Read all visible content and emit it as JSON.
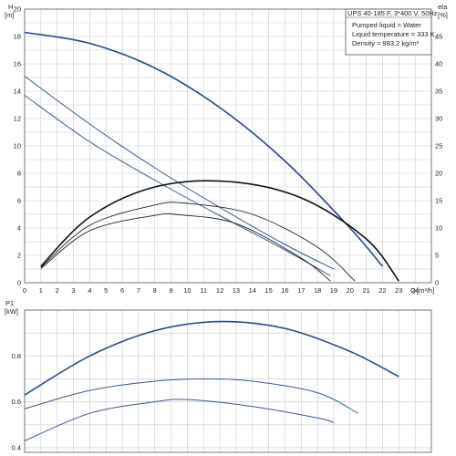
{
  "chart_data": [
    {
      "type": "line",
      "info_box": {
        "title": "UPS 40-185 F, 3*400 V, 50Hz",
        "lines": [
          "Pumped liquid = Water",
          "Liquid temperature = 333 K",
          "Density = 983.2 kg/m³"
        ]
      },
      "left_axis": {
        "label": "H",
        "unit": "[m]",
        "ylim": [
          0,
          20
        ],
        "ticks": [
          0,
          2,
          4,
          6,
          8,
          10,
          12,
          14,
          16,
          18,
          20
        ]
      },
      "right_axis": {
        "label": "eta",
        "unit": "[%]",
        "ylim": [
          0,
          50
        ],
        "ticks": [
          0,
          5,
          10,
          15,
          20,
          25,
          30,
          35,
          40,
          45
        ]
      },
      "x_axis": {
        "label": "Q",
        "unit": "[m³/h]",
        "xlim": [
          0,
          25
        ],
        "ticks": [
          0,
          1,
          2,
          3,
          4,
          5,
          6,
          7,
          8,
          9,
          10,
          11,
          12,
          13,
          14,
          15,
          16,
          17,
          18,
          19,
          20,
          21,
          22,
          23,
          24
        ]
      },
      "grid": true,
      "head_series": [
        {
          "color": "#1f4e8c",
          "width": 1.6,
          "x": [
            0,
            4,
            8,
            12,
            16,
            20,
            22
          ],
          "y": [
            18.3,
            17.5,
            15.7,
            12.8,
            8.9,
            4.0,
            1.2
          ]
        },
        {
          "color": "#2d5a9c",
          "width": 1.0,
          "x": [
            0,
            4,
            8,
            12,
            16,
            19
          ],
          "y": [
            15.1,
            11.6,
            8.4,
            5.5,
            2.8,
            1.0
          ]
        },
        {
          "color": "#2d5a9c",
          "width": 1.0,
          "x": [
            0,
            4,
            8,
            12,
            16,
            18.8
          ],
          "y": [
            13.7,
            10.3,
            7.5,
            4.9,
            2.4,
            0.5
          ]
        }
      ],
      "eta_series": [
        {
          "color": "#111111",
          "width": 1.6,
          "x": [
            1,
            4,
            8,
            12.5,
            17,
            21,
            23
          ],
          "y": [
            3,
            12,
            17.5,
            18.5,
            15.5,
            8,
            0.3
          ]
        },
        {
          "color": "#222222",
          "width": 0.9,
          "x": [
            1,
            4,
            8,
            10,
            14,
            18,
            20.3
          ],
          "y": [
            2.8,
            10.5,
            14.2,
            14.5,
            12.5,
            6.5,
            0.3
          ]
        },
        {
          "color": "#222222",
          "width": 0.9,
          "x": [
            1,
            4,
            8,
            9.5,
            13,
            17,
            18.8
          ],
          "y": [
            2.6,
            9.5,
            12.3,
            12.4,
            10.8,
            4.5,
            0.3
          ]
        }
      ]
    },
    {
      "type": "line",
      "left_axis": {
        "label": "P1",
        "unit": "[kW]",
        "ylim": [
          0.38,
          1.0
        ],
        "ticks": [
          0.4,
          0.6,
          0.8
        ]
      },
      "x_axis": {
        "xlim": [
          0,
          25
        ]
      },
      "grid": true,
      "series": [
        {
          "color": "#1f4e8c",
          "width": 1.6,
          "x": [
            0,
            4,
            8,
            12,
            16,
            20,
            23
          ],
          "y": [
            0.63,
            0.8,
            0.91,
            0.95,
            0.92,
            0.82,
            0.71
          ]
        },
        {
          "color": "#2d5a9c",
          "width": 1.0,
          "x": [
            0,
            4,
            8,
            11,
            14,
            18,
            20.5
          ],
          "y": [
            0.57,
            0.65,
            0.69,
            0.7,
            0.69,
            0.64,
            0.55
          ]
        },
        {
          "color": "#2d5a9c",
          "width": 1.0,
          "x": [
            0,
            4,
            8,
            10,
            14,
            18,
            19
          ],
          "y": [
            0.43,
            0.55,
            0.6,
            0.61,
            0.58,
            0.53,
            0.51
          ]
        }
      ]
    }
  ]
}
